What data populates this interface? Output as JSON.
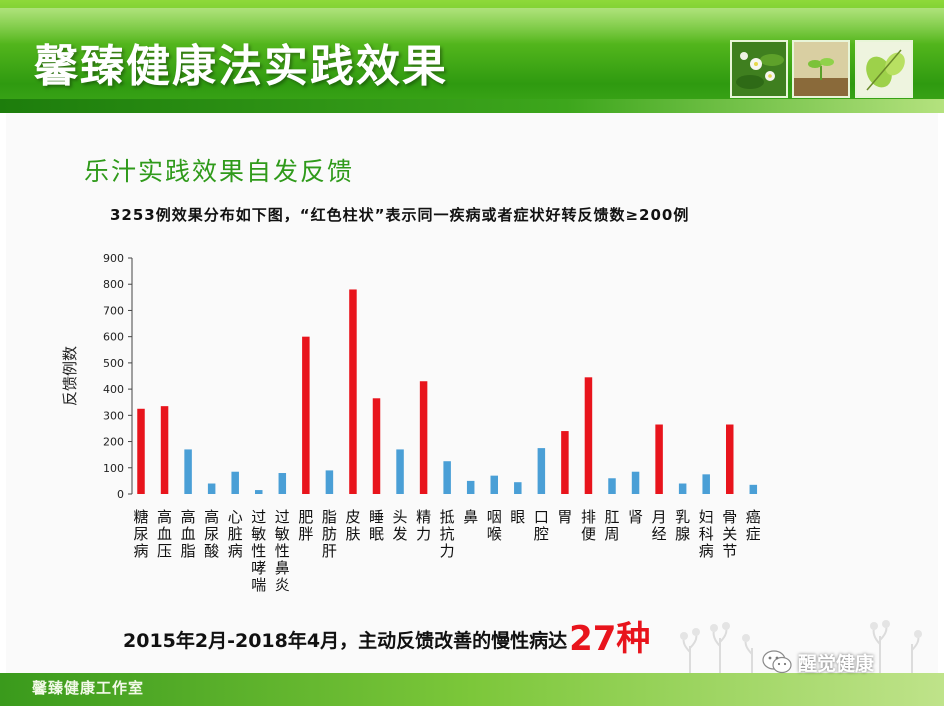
{
  "header": {
    "title": "馨臻健康法实践效果",
    "thumbnails": [
      "white-flower-photo",
      "sprout-photo",
      "green-leaf-photo"
    ]
  },
  "subtitle": "乐汁实践效果自发反馈",
  "caption": "3253例效果分布如下图，“红色柱状”表示同一疾病或者症状好转反馈数≥200例",
  "summary": {
    "text": "2015年2月-2018年4月，主动反馈改善的慢性病达",
    "count": "27种"
  },
  "footer": {
    "label": "馨臻健康工作室"
  },
  "watermark": {
    "text": "醒觉健康",
    "icon": "wechat-icon"
  },
  "colors": {
    "highlight": "#e8141c",
    "normal": "#4a9fd6",
    "brand_green": "#2f9a1a"
  },
  "chart_data": {
    "type": "bar",
    "ylabel": "反馈例数",
    "xlabel": "",
    "ylim": [
      0,
      900
    ],
    "yticks": [
      0,
      100,
      200,
      300,
      400,
      500,
      600,
      700,
      800,
      900
    ],
    "threshold": 200,
    "grid": false,
    "categories": [
      "糖尿病",
      "高血压",
      "高血脂",
      "高尿酸",
      "心脏病",
      "过敏性哮喘",
      "过敏性鼻炎",
      "肥胖",
      "脂肪肝",
      "皮肤",
      "睡眠",
      "头发",
      "精力",
      "抵抗力",
      "鼻",
      "咽喉",
      "眼",
      "口腔",
      "胃",
      "排便",
      "肛周",
      "肾",
      "月经",
      "乳腺",
      "妇科病",
      "骨关节",
      "癌症"
    ],
    "values": [
      325,
      335,
      170,
      40,
      85,
      15,
      80,
      600,
      90,
      780,
      365,
      170,
      430,
      125,
      50,
      70,
      45,
      175,
      240,
      445,
      60,
      85,
      265,
      40,
      75,
      265,
      35
    ],
    "highlighted": [
      true,
      true,
      false,
      false,
      false,
      false,
      false,
      true,
      false,
      true,
      true,
      false,
      true,
      false,
      false,
      false,
      false,
      false,
      true,
      true,
      false,
      false,
      true,
      false,
      false,
      true,
      false
    ]
  }
}
